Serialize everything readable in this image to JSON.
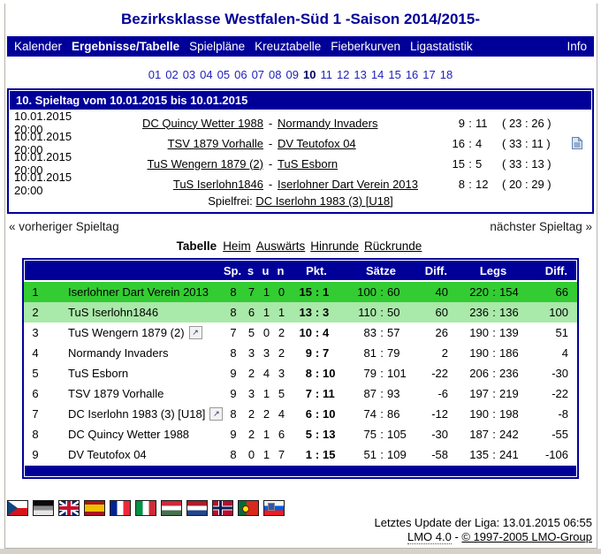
{
  "title": "Bezirksklasse Westfalen-Süd 1 -Saison 2014/2015-",
  "nav": {
    "items": [
      "Kalender",
      "Ergebnisse/Tabelle",
      "Spielpläne",
      "Kreuztabelle",
      "Fieberkurven",
      "Ligastatistik"
    ],
    "active": "Ergebnisse/Tabelle",
    "right_item": "Info"
  },
  "matchdays": {
    "items": [
      "01",
      "02",
      "03",
      "04",
      "05",
      "06",
      "07",
      "08",
      "09",
      "10",
      "11",
      "12",
      "13",
      "14",
      "15",
      "16",
      "17",
      "18"
    ],
    "active": "10"
  },
  "results": {
    "header": "10. Spieltag vom 10.01.2015 bis 10.01.2015",
    "matches": [
      {
        "datetime": "10.01.2015 20:00",
        "home": "DC Quincy Wetter 1988",
        "away": "Normandy Invaders",
        "home_score": "9",
        "away_score": "11",
        "sets": "( 23 : 26 )",
        "has_report": false
      },
      {
        "datetime": "10.01.2015 20:00",
        "home": "TSV 1879 Vorhalle",
        "away": "DV Teutofox 04",
        "home_score": "16",
        "away_score": "4",
        "sets": "( 33 : 11 )",
        "has_report": true
      },
      {
        "datetime": "10.01.2015 20:00",
        "home": "TuS Wengern 1879 (2)",
        "away": "TuS Esborn",
        "home_score": "15",
        "away_score": "5",
        "sets": "( 33 : 13 )",
        "has_report": false
      },
      {
        "datetime": "10.01.2015 20:00",
        "home": "TuS Iserlohn1846",
        "away": "Iserlohner Dart Verein 2013",
        "home_score": "8",
        "away_score": "12",
        "sets": "( 20 : 29 )",
        "has_report": false
      }
    ],
    "bye_label": "Spielfrei:",
    "bye_team": "DC Iserlohn 1983 (3) [U18]"
  },
  "pager": {
    "prev": "« vorheriger Spieltag",
    "next": "nächster Spieltag »"
  },
  "table_nav": {
    "title": "Tabelle",
    "links": [
      "Heim",
      "Auswärts",
      "Hinrunde",
      "Rückrunde"
    ]
  },
  "table": {
    "headers": {
      "sp": "Sp.",
      "s": "s",
      "u": "u",
      "n": "n",
      "pkt": "Pkt.",
      "saetze": "Sätze",
      "diff1": "Diff.",
      "legs": "Legs",
      "diff2": "Diff."
    },
    "rows": [
      {
        "rank": "1",
        "team": "Iserlohner Dart Verein 2013",
        "link_icon": false,
        "sp": "8",
        "s": "7",
        "u": "1",
        "n": "0",
        "pkt": [
          "15",
          "1"
        ],
        "saetze": [
          "100",
          "60"
        ],
        "diff1": "40",
        "legs": [
          "220",
          "154"
        ],
        "diff2": "66",
        "highlight": "first"
      },
      {
        "rank": "2",
        "team": "TuS Iserlohn1846",
        "link_icon": false,
        "sp": "8",
        "s": "6",
        "u": "1",
        "n": "1",
        "pkt": [
          "13",
          "3"
        ],
        "saetze": [
          "110",
          "50"
        ],
        "diff1": "60",
        "legs": [
          "236",
          "136"
        ],
        "diff2": "100",
        "highlight": "second"
      },
      {
        "rank": "3",
        "team": "TuS Wengern 1879 (2)",
        "link_icon": true,
        "sp": "7",
        "s": "5",
        "u": "0",
        "n": "2",
        "pkt": [
          "10",
          "4"
        ],
        "saetze": [
          "83",
          "57"
        ],
        "diff1": "26",
        "legs": [
          "190",
          "139"
        ],
        "diff2": "51",
        "highlight": ""
      },
      {
        "rank": "4",
        "team": "Normandy Invaders",
        "link_icon": false,
        "sp": "8",
        "s": "3",
        "u": "3",
        "n": "2",
        "pkt": [
          "9",
          "7"
        ],
        "saetze": [
          "81",
          "79"
        ],
        "diff1": "2",
        "legs": [
          "190",
          "186"
        ],
        "diff2": "4",
        "highlight": ""
      },
      {
        "rank": "5",
        "team": "TuS Esborn",
        "link_icon": false,
        "sp": "9",
        "s": "2",
        "u": "4",
        "n": "3",
        "pkt": [
          "8",
          "10"
        ],
        "saetze": [
          "79",
          "101"
        ],
        "diff1": "-22",
        "legs": [
          "206",
          "236"
        ],
        "diff2": "-30",
        "highlight": ""
      },
      {
        "rank": "6",
        "team": "TSV 1879 Vorhalle",
        "link_icon": false,
        "sp": "9",
        "s": "3",
        "u": "1",
        "n": "5",
        "pkt": [
          "7",
          "11"
        ],
        "saetze": [
          "87",
          "93"
        ],
        "diff1": "-6",
        "legs": [
          "197",
          "219"
        ],
        "diff2": "-22",
        "highlight": ""
      },
      {
        "rank": "7",
        "team": "DC Iserlohn 1983 (3) [U18]",
        "link_icon": true,
        "sp": "8",
        "s": "2",
        "u": "2",
        "n": "4",
        "pkt": [
          "6",
          "10"
        ],
        "saetze": [
          "74",
          "86"
        ],
        "diff1": "-12",
        "legs": [
          "190",
          "198"
        ],
        "diff2": "-8",
        "highlight": ""
      },
      {
        "rank": "8",
        "team": "DC Quincy Wetter 1988",
        "link_icon": false,
        "sp": "9",
        "s": "2",
        "u": "1",
        "n": "6",
        "pkt": [
          "5",
          "13"
        ],
        "saetze": [
          "75",
          "105"
        ],
        "diff1": "-30",
        "legs": [
          "187",
          "242"
        ],
        "diff2": "-55",
        "highlight": ""
      },
      {
        "rank": "9",
        "team": "DV Teutofox 04",
        "link_icon": false,
        "sp": "8",
        "s": "0",
        "u": "1",
        "n": "7",
        "pkt": [
          "1",
          "15"
        ],
        "saetze": [
          "51",
          "109"
        ],
        "diff1": "-58",
        "legs": [
          "135",
          "241"
        ],
        "diff2": "-106",
        "highlight": ""
      }
    ]
  },
  "flags": [
    {
      "id": "czech"
    },
    {
      "id": "german"
    },
    {
      "id": "british"
    },
    {
      "id": "spanish"
    },
    {
      "id": "french"
    },
    {
      "id": "italian"
    },
    {
      "id": "hungarian"
    },
    {
      "id": "dutch"
    },
    {
      "id": "norwegian"
    },
    {
      "id": "portuguese"
    },
    {
      "id": "slovenian"
    }
  ],
  "footer": {
    "update": "Letztes Update der Liga: 13.01.2015 06:55",
    "lmo": "LMO 4.0",
    "separator": " - ",
    "copyright": "© 1997-2005 LMO-Group"
  },
  "ui": {
    "colon": ":",
    "dash": "-"
  },
  "colors": {
    "navy": "#000099",
    "green_first": "#33cc33",
    "green_second": "#a9e9a9",
    "link_blue": "#2222bb"
  }
}
